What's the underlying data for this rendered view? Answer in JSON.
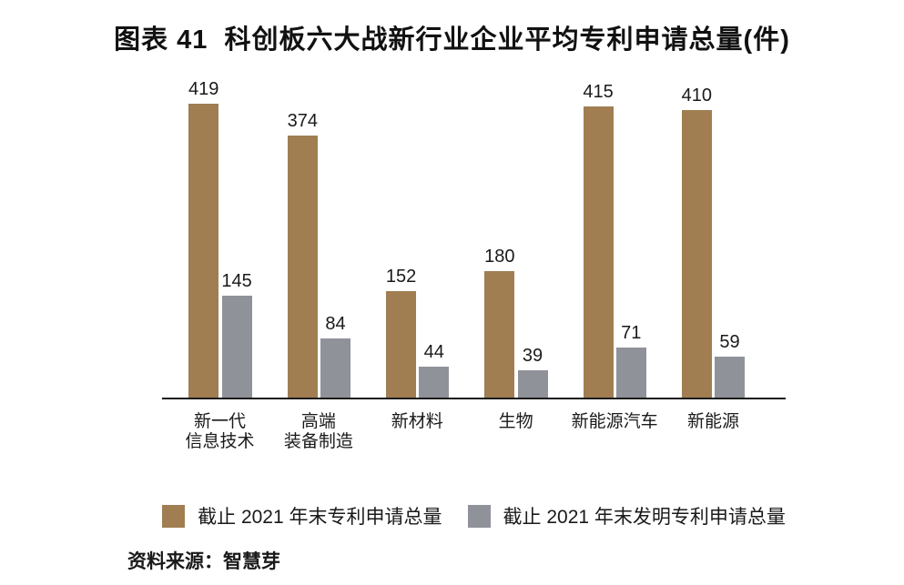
{
  "figure": {
    "title": "图表 41  科创板六大战新行业企业平均专利申请总量(件)",
    "source": "资料来源：智慧芽"
  },
  "colors": {
    "series_total": "#A07E52",
    "series_invention": "#8F9298",
    "axis": "#1a1a1a",
    "text": "#1a1a1a",
    "background": "#ffffff"
  },
  "chart_data": {
    "type": "bar",
    "title": "图表 41  科创板六大战新行业企业平均专利申请总量(件)",
    "xlabel": "",
    "ylabel": "",
    "categories": [
      "新一代\n信息技术",
      "高端\n装备制造",
      "新材料",
      "生物",
      "新能源汽车",
      "新能源"
    ],
    "series": [
      {
        "name": "截止 2021 年末专利申请总量",
        "color": "#A07E52",
        "values": [
          419,
          374,
          152,
          180,
          415,
          410
        ]
      },
      {
        "name": "截止 2021 年末发明专利申请总量",
        "color": "#8F9298",
        "values": [
          145,
          84,
          44,
          39,
          71,
          59
        ]
      }
    ],
    "ylim": [
      0,
      440
    ],
    "grid": false,
    "y_axis_visible": false,
    "value_labels": true,
    "legend_position": "bottom"
  }
}
